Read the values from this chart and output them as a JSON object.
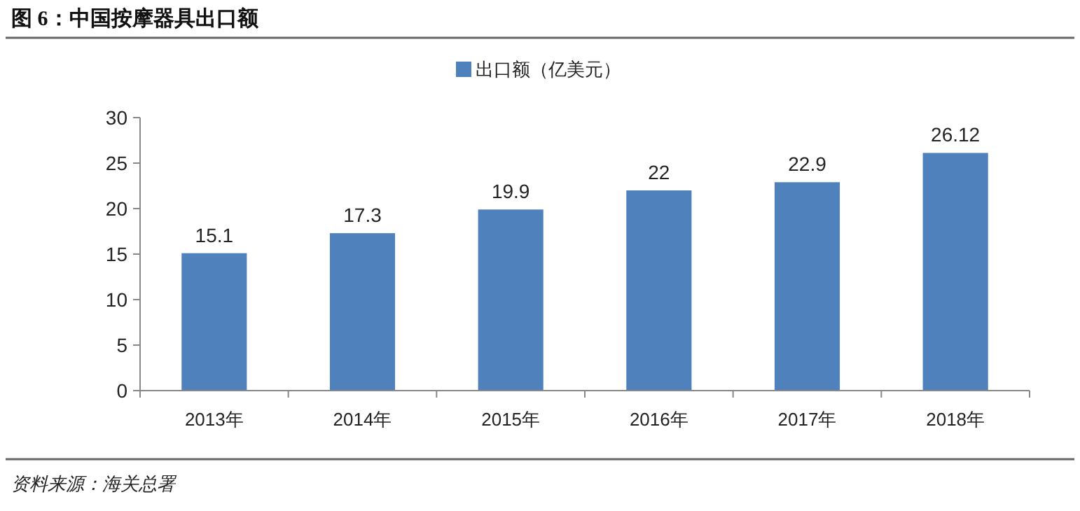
{
  "chart_data": {
    "type": "bar",
    "title": "图 6：中国按摩器具出口额",
    "categories": [
      "2013年",
      "2014年",
      "2015年",
      "2016年",
      "2017年",
      "2018年"
    ],
    "series": [
      {
        "name": "出口额（亿美元）",
        "color": "#4f81bd",
        "values": [
          15.1,
          17.3,
          19.9,
          22,
          22.9,
          26.12
        ]
      }
    ],
    "ylim": [
      0,
      30
    ],
    "yticks": [
      0,
      5,
      10,
      15,
      20,
      25,
      30
    ],
    "grid": false,
    "legend": "top",
    "data_labels": true,
    "annotations": [
      "资料来源：海关总署"
    ]
  }
}
